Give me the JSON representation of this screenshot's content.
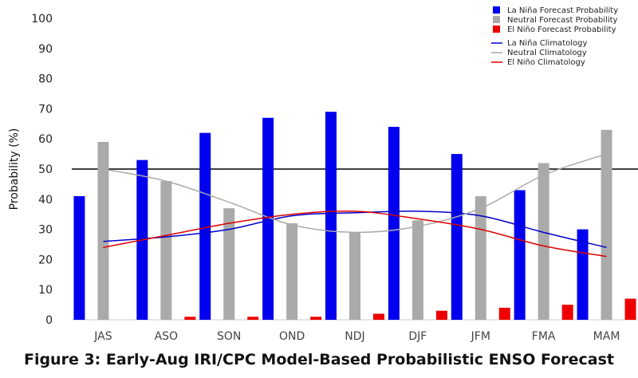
{
  "caption": "Figure 3: Early-Aug IRI/CPC Model-Based Probabilistic ENSO Forecast",
  "chart_data": {
    "type": "bar",
    "title": "",
    "xlabel": "",
    "ylabel": "Probability (%)",
    "ylim": [
      0,
      100
    ],
    "yticks": [
      0,
      10,
      20,
      30,
      40,
      50,
      60,
      70,
      80,
      90,
      100
    ],
    "reference_line": 50,
    "categories": [
      "JAS",
      "ASO",
      "SON",
      "OND",
      "NDJ",
      "DJF",
      "JFM",
      "FMA",
      "MAM"
    ],
    "series": [
      {
        "name": "La Niña Forecast Probability",
        "kind": "bar",
        "color": "#0000ee",
        "values": [
          41,
          53,
          62,
          67,
          69,
          64,
          55,
          43,
          30
        ]
      },
      {
        "name": "Neutral Forecast Probability",
        "kind": "bar",
        "color": "#aaaaaa",
        "values": [
          59,
          46,
          37,
          32,
          29,
          33,
          41,
          52,
          63
        ]
      },
      {
        "name": "El Niño Forecast Probability",
        "kind": "bar",
        "color": "#ee0000",
        "values": [
          0,
          1,
          1,
          1,
          2,
          3,
          4,
          5,
          7
        ]
      },
      {
        "name": "La Niña Climatology",
        "kind": "line",
        "color": "#0000cc",
        "values": [
          26,
          27.5,
          30,
          34.5,
          35.5,
          36,
          34.5,
          29,
          24
        ]
      },
      {
        "name": "Neutral Climatology",
        "kind": "line",
        "color": "#aaaaaa",
        "values": [
          50,
          46,
          39,
          31.5,
          29,
          31,
          37,
          48,
          55
        ]
      },
      {
        "name": "El Niño Climatology",
        "kind": "line",
        "color": "#dd0000",
        "values": [
          24,
          28,
          32,
          35,
          36,
          33.5,
          30,
          24.5,
          21
        ]
      }
    ],
    "legend_position": "top-right",
    "grid": false
  }
}
